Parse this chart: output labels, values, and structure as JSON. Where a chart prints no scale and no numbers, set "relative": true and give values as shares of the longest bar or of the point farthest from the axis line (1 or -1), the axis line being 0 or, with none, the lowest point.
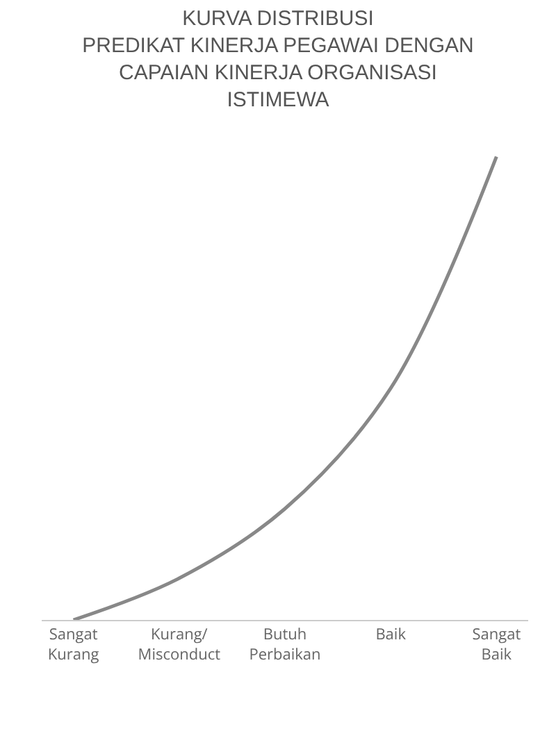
{
  "chart_data": {
    "type": "line",
    "title": "KURVA DISTRIBUSI\nPREDIKAT KINERJA PEGAWAI DENGAN\nCAPAIAN KINERJA ORGANISASI\nISTIMEWA",
    "categories": [
      "Sangat Kurang",
      "Kurang/Misconduct",
      "Butuh Perbaikan",
      "Baik",
      "Sangat Baik"
    ],
    "series": [
      {
        "color": "#888888",
        "values": [
          0,
          0.09,
          0.24,
          0.5,
          1
        ]
      }
    ],
    "relative": true,
    "grid": false,
    "legend": false,
    "marker": "none",
    "line_style": "solid"
  }
}
